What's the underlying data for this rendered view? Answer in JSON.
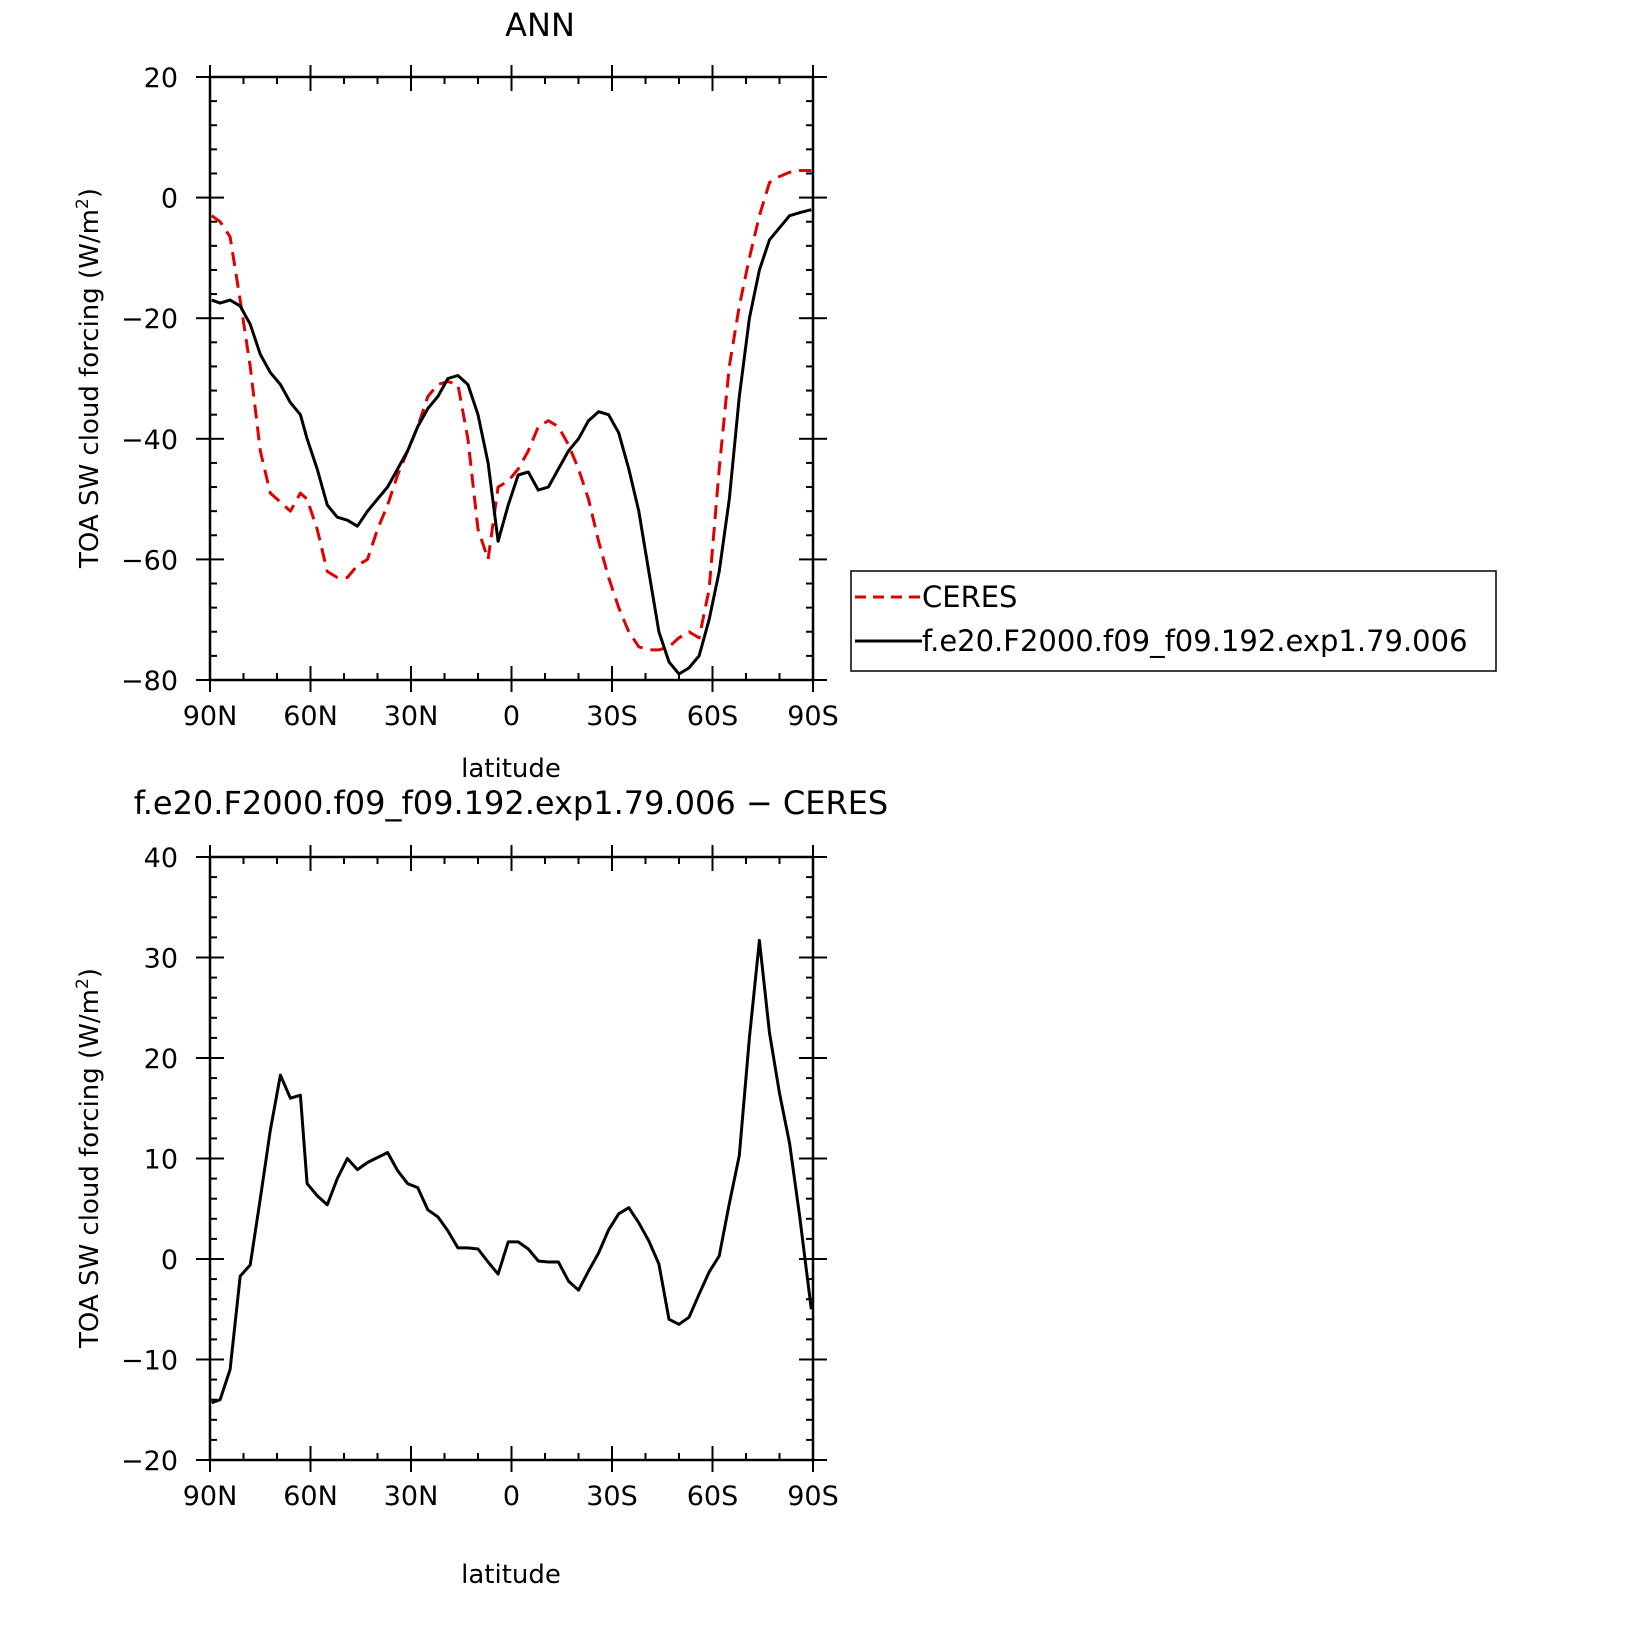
{
  "chart_data": [
    {
      "type": "line",
      "title": "ANN",
      "xlabel": "latitude",
      "ylabel": "TOA SW cloud forcing (W/m",
      "ylabel_sup": "2",
      "ylabel_close": ")",
      "xlim": [
        90,
        -90
      ],
      "ylim": [
        -80,
        20
      ],
      "xticks": [
        {
          "v": 90,
          "label": "90N"
        },
        {
          "v": 60,
          "label": "60N"
        },
        {
          "v": 30,
          "label": "30N"
        },
        {
          "v": 0,
          "label": "0"
        },
        {
          "v": -30,
          "label": "30S"
        },
        {
          "v": -60,
          "label": "60S"
        },
        {
          "v": -90,
          "label": "90S"
        }
      ],
      "yticks": [
        {
          "v": 20,
          "label": "20"
        },
        {
          "v": 0,
          "label": "0"
        },
        {
          "v": -20,
          "label": "−20"
        },
        {
          "v": -40,
          "label": "−40"
        },
        {
          "v": -60,
          "label": "−60"
        },
        {
          "v": -80,
          "label": "−80"
        }
      ],
      "legend_position": "right",
      "series": [
        {
          "name": "CERES",
          "color": "#e00000",
          "dash": "dashed",
          "x": [
            89.5,
            87,
            84,
            81,
            78,
            75,
            72,
            69,
            66,
            63,
            61,
            58,
            55,
            52,
            49,
            46,
            43,
            40,
            37,
            34,
            31,
            28,
            25,
            22,
            19,
            16,
            13,
            10,
            7,
            4,
            1,
            -2,
            -5,
            -8,
            -11,
            -14,
            -17,
            -20,
            -23,
            -26,
            -29,
            -32,
            -35,
            -38,
            -41,
            -44,
            -47,
            -50,
            -53,
            -56,
            -59,
            -62,
            -65,
            -68,
            -71,
            -74,
            -77,
            -80,
            -83,
            -86,
            -89.5
          ],
          "y": [
            -3,
            -4,
            -6.5,
            -17,
            -28,
            -42,
            -49,
            -50.5,
            -52,
            -49,
            -50,
            -55,
            -62,
            -63,
            -63,
            -61,
            -60,
            -55,
            -51,
            -46,
            -42,
            -38,
            -33,
            -31,
            -30.5,
            -31,
            -40,
            -55,
            -60,
            -48,
            -47,
            -45,
            -42,
            -38,
            -37,
            -38,
            -41,
            -45,
            -50,
            -57,
            -63,
            -68,
            -72,
            -74.5,
            -75,
            -75,
            -74.5,
            -73,
            -72,
            -73,
            -65,
            -45,
            -28,
            -18,
            -10,
            -3,
            2.5,
            3.5,
            4.2,
            4.5,
            4.5
          ]
        },
        {
          "name": "f.e20.F2000.f09_f09.192.exp1.79.006",
          "color": "#000000",
          "dash": "solid",
          "x": [
            89.5,
            87,
            84,
            81,
            78,
            75,
            72,
            69,
            66,
            63,
            61,
            58,
            55,
            52,
            49,
            46,
            43,
            40,
            37,
            34,
            31,
            28,
            25,
            22,
            19,
            16,
            13,
            10,
            7,
            4,
            1,
            -2,
            -5,
            -8,
            -11,
            -14,
            -17,
            -20,
            -23,
            -26,
            -29,
            -32,
            -35,
            -38,
            -41,
            -44,
            -47,
            -50,
            -53,
            -56,
            -59,
            -62,
            -65,
            -68,
            -71,
            -74,
            -77,
            -80,
            -83,
            -86,
            -89.5
          ],
          "y": [
            -17,
            -17.5,
            -17,
            -18,
            -21,
            -26,
            -29,
            -31,
            -34,
            -36,
            -40,
            -45,
            -51,
            -53,
            -53.5,
            -54.5,
            -52,
            -50,
            -48,
            -45,
            -42,
            -38,
            -35,
            -33,
            -30,
            -29.5,
            -31,
            -36,
            -44,
            -57,
            -51,
            -46,
            -45.5,
            -48.5,
            -48,
            -45,
            -42,
            -40,
            -37,
            -35.5,
            -36,
            -39,
            -45,
            -52,
            -62,
            -72,
            -77,
            -79,
            -78,
            -76,
            -70,
            -62,
            -50,
            -33,
            -20,
            -12,
            -7,
            -5,
            -3,
            -2.5,
            -2
          ]
        }
      ]
    },
    {
      "type": "line",
      "title": "f.e20.F2000.f09_f09.192.exp1.79.006 − CERES",
      "xlabel": "latitude",
      "ylabel": "TOA SW cloud forcing (W/m",
      "ylabel_sup": "2",
      "ylabel_close": ")",
      "xlim": [
        90,
        -90
      ],
      "ylim": [
        -20,
        40
      ],
      "xticks": [
        {
          "v": 90,
          "label": "90N"
        },
        {
          "v": 60,
          "label": "60N"
        },
        {
          "v": 30,
          "label": "30N"
        },
        {
          "v": 0,
          "label": "0"
        },
        {
          "v": -30,
          "label": "30S"
        },
        {
          "v": -60,
          "label": "60S"
        },
        {
          "v": -90,
          "label": "90S"
        }
      ],
      "yticks": [
        {
          "v": 40,
          "label": "40"
        },
        {
          "v": 30,
          "label": "30"
        },
        {
          "v": 20,
          "label": "20"
        },
        {
          "v": 10,
          "label": "10"
        },
        {
          "v": 0,
          "label": "0"
        },
        {
          "v": -10,
          "label": "−10"
        },
        {
          "v": -20,
          "label": "−20"
        }
      ],
      "series": [
        {
          "color": "#000000",
          "dash": "solid",
          "x": [
            89.5,
            87,
            84,
            81,
            78,
            75,
            72,
            69,
            66,
            63,
            61,
            58,
            55,
            52,
            49,
            46,
            43,
            40,
            37,
            34,
            31,
            28,
            25,
            22,
            19,
            16,
            13,
            10,
            7,
            4,
            1,
            -2,
            -5,
            -8,
            -11,
            -14,
            -17,
            -20,
            -23,
            -26,
            -29,
            -32,
            -35,
            -38,
            -41,
            -44,
            -47,
            -50,
            -53,
            -56,
            -59,
            -62,
            -65,
            -68,
            -71,
            -74,
            -77,
            -80,
            -83,
            -86,
            -89.5
          ],
          "y": [
            -14.3,
            -14,
            -11,
            -1.7,
            -0.6,
            6,
            12.8,
            18.3,
            16,
            16.3,
            7.5,
            6.3,
            5.4,
            8,
            10,
            8.9,
            9.6,
            10.1,
            10.6,
            8.8,
            7.5,
            7.1,
            4.9,
            4.2,
            2.8,
            1.1,
            1.1,
            1,
            -0.3,
            -1.5,
            1.7,
            1.7,
            1,
            -0.2,
            -0.3,
            -0.3,
            -2.2,
            -3.1,
            -1.2,
            0.6,
            2.9,
            4.5,
            5.1,
            3.6,
            1.8,
            -0.5,
            -6,
            -6.5,
            -5.8,
            -3.5,
            -1.3,
            0.3,
            5.5,
            10.3,
            22,
            31.7,
            22.5,
            16.5,
            11.5,
            4.3,
            -5
          ]
        }
      ]
    }
  ]
}
